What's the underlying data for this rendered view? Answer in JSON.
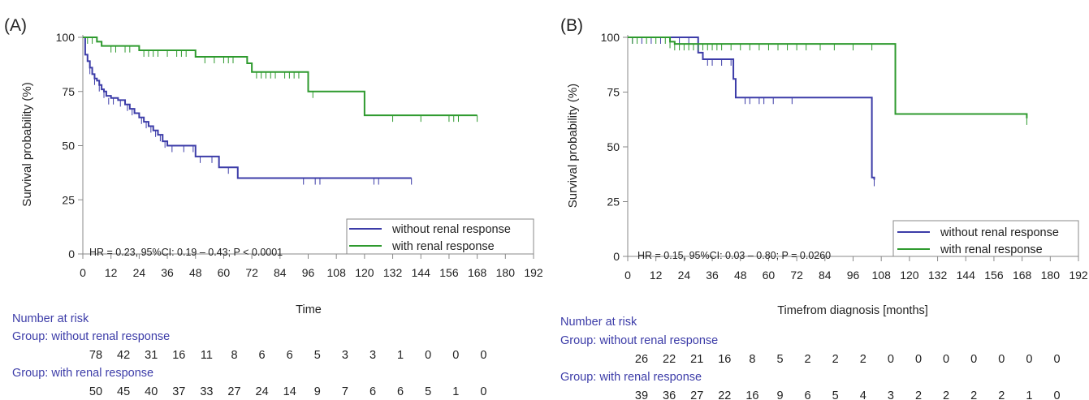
{
  "chart_data": [
    {
      "type": "line",
      "panel_label": "(A)",
      "ylabel": "Survival probability (%)",
      "xlabel": "Time",
      "ylim": [
        0,
        100
      ],
      "xlim": [
        0,
        192
      ],
      "yticks": [
        0,
        25,
        50,
        75,
        100
      ],
      "xticks": [
        0,
        12,
        24,
        36,
        48,
        60,
        72,
        84,
        96,
        108,
        120,
        132,
        144,
        156,
        168,
        180,
        192
      ],
      "annotation": "HR = 0.23, 95%CI: 0.19 – 0.43; P < 0.0001",
      "legend_position": "bottom-right",
      "series": [
        {
          "name": "without renal response",
          "color": "#3c3ca8",
          "x": [
            0,
            1,
            2,
            3,
            4,
            5,
            6,
            7,
            8,
            9,
            10,
            12,
            15,
            18,
            20,
            22,
            24,
            26,
            28,
            30,
            32,
            34,
            36,
            40,
            48,
            52,
            58,
            66,
            140
          ],
          "values": [
            100,
            92,
            89,
            86,
            83,
            81,
            80,
            78,
            76,
            75,
            73,
            72,
            71,
            69,
            67,
            65,
            63,
            61,
            59,
            57,
            55,
            52,
            50,
            50,
            45,
            45,
            40,
            35,
            35
          ],
          "censor_x": [
            3,
            5,
            7,
            9,
            11,
            13,
            16,
            19,
            21,
            25,
            27,
            29,
            31,
            33,
            35,
            38,
            43,
            47,
            50,
            55,
            62,
            94,
            99,
            101,
            124,
            126,
            140
          ],
          "censor_y": [
            86,
            81,
            78,
            75,
            72,
            72,
            71,
            69,
            67,
            63,
            61,
            59,
            57,
            55,
            52,
            50,
            50,
            50,
            45,
            45,
            40,
            35,
            35,
            35,
            35,
            35,
            35
          ]
        },
        {
          "name": "with renal response",
          "color": "#2e9a2e",
          "x": [
            0,
            6,
            8,
            24,
            48,
            70,
            72,
            96,
            120,
            168
          ],
          "values": [
            100,
            98,
            96,
            94,
            91,
            88,
            84,
            75,
            64,
            64
          ],
          "censor_x": [
            2,
            4,
            12,
            14,
            18,
            20,
            26,
            28,
            30,
            32,
            36,
            40,
            42,
            44,
            52,
            56,
            60,
            62,
            64,
            74,
            76,
            78,
            80,
            82,
            86,
            88,
            90,
            92,
            98,
            132,
            144,
            156,
            158,
            160,
            168
          ],
          "censor_y": [
            100,
            100,
            96,
            96,
            96,
            96,
            94,
            94,
            94,
            94,
            94,
            94,
            94,
            94,
            91,
            91,
            91,
            91,
            91,
            84,
            84,
            84,
            84,
            84,
            84,
            84,
            84,
            84,
            75,
            64,
            64,
            64,
            64,
            64,
            64
          ]
        }
      ],
      "risk_table": {
        "title": "Number at risk",
        "groups": [
          {
            "label": "Group: without renal response",
            "counts": [
              "78",
              "42",
              "31",
              "16",
              "11",
              "8",
              "6",
              "6",
              "5",
              "3",
              "3",
              "1",
              "0",
              "0",
              "0"
            ]
          },
          {
            "label": "Group: with renal response",
            "counts": [
              "50",
              "45",
              "40",
              "37",
              "33",
              "27",
              "24",
              "14",
              "9",
              "7",
              "6",
              "6",
              "5",
              "1",
              "0"
            ]
          }
        ]
      }
    },
    {
      "type": "line",
      "panel_label": "(B)",
      "ylabel": "Survival probability (%)",
      "xlabel": "Timefrom diagnosis [months]",
      "ylim": [
        0,
        100
      ],
      "xlim": [
        0,
        192
      ],
      "yticks": [
        0,
        25,
        50,
        75,
        100
      ],
      "xticks": [
        0,
        12,
        24,
        36,
        48,
        60,
        72,
        84,
        96,
        108,
        120,
        132,
        144,
        156,
        168,
        180,
        192
      ],
      "annotation": "HR = 0.15, 95%CI: 0.03 – 0.80; P = 0.0260",
      "legend_position": "bottom-right",
      "series": [
        {
          "name": "without renal response",
          "color": "#3c3ca8",
          "x": [
            0,
            30,
            32,
            45,
            46,
            104,
            105
          ],
          "values": [
            100,
            93,
            90,
            81,
            72.5,
            36,
            35
          ],
          "censor_x": [
            2,
            6,
            10,
            14,
            18,
            22,
            26,
            34,
            36,
            40,
            44,
            50,
            52,
            56,
            58,
            62,
            70,
            105
          ],
          "censor_y": [
            100,
            100,
            100,
            100,
            100,
            100,
            100,
            90,
            90,
            90,
            90,
            72.5,
            72.5,
            72.5,
            72.5,
            72.5,
            72.5,
            35
          ]
        },
        {
          "name": "with renal response",
          "color": "#2e9a2e",
          "x": [
            0,
            18,
            20,
            114,
            170
          ],
          "values": [
            100,
            98,
            97,
            65,
            63
          ],
          "censor_x": [
            2,
            4,
            8,
            12,
            16,
            18,
            20,
            22,
            24,
            26,
            28,
            30,
            32,
            34,
            36,
            38,
            40,
            44,
            48,
            52,
            56,
            60,
            64,
            68,
            72,
            76,
            82,
            88,
            96,
            104,
            170
          ],
          "censor_y": [
            100,
            100,
            100,
            100,
            100,
            98,
            97,
            97,
            97,
            97,
            97,
            97,
            97,
            97,
            97,
            97,
            97,
            97,
            97,
            97,
            97,
            97,
            97,
            97,
            97,
            97,
            97,
            97,
            97,
            97,
            63
          ]
        }
      ],
      "risk_table": {
        "title": "Number at risk",
        "groups": [
          {
            "label": "Group: without renal response",
            "counts": [
              "26",
              "22",
              "21",
              "16",
              "8",
              "5",
              "2",
              "2",
              "2",
              "0",
              "0",
              "0",
              "0",
              "0",
              "0",
              "0"
            ]
          },
          {
            "label": "Group: with renal response",
            "counts": [
              "39",
              "36",
              "27",
              "22",
              "16",
              "9",
              "6",
              "5",
              "4",
              "3",
              "2",
              "2",
              "2",
              "2",
              "1",
              "0"
            ]
          }
        ]
      }
    }
  ]
}
